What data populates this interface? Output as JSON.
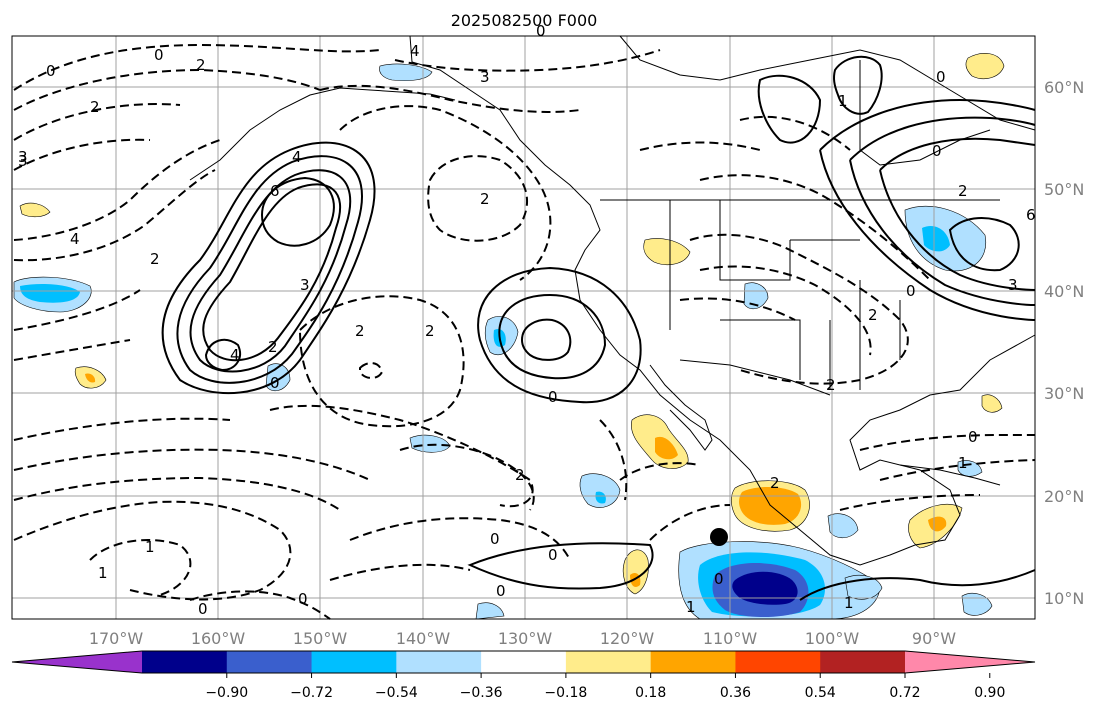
{
  "title": "2025082500 F000",
  "lon_ticks": [
    "170°W",
    "160°W",
    "150°W",
    "140°W",
    "130°W",
    "120°W",
    "110°W",
    "100°W",
    "90°W"
  ],
  "lat_ticks": [
    "60°N",
    "50°N",
    "40°N",
    "30°N",
    "20°N",
    "10°N"
  ],
  "colorbar": {
    "ticks": [
      "−0.90",
      "−0.72",
      "−0.54",
      "−0.36",
      "−0.18",
      "0.18",
      "0.36",
      "0.54",
      "0.72",
      "0.90"
    ],
    "colors": [
      "#9932cc",
      "#00008b",
      "#3a5fcd",
      "#00bfff",
      "#b0e0ff",
      "#ffffff",
      "#ffec8b",
      "#ffa500",
      "#ff4500",
      "#b22222",
      "#ff88aa"
    ]
  },
  "contour_labels": [
    "0",
    "2",
    "4",
    "6",
    "3",
    "4",
    "3",
    "2",
    "0",
    "2",
    "4",
    "2",
    "3",
    "4",
    "2",
    "0",
    "2",
    "2",
    "0",
    "2",
    "2",
    "0",
    "1",
    "0",
    "0",
    "1",
    "2",
    "0",
    "0",
    "3",
    "6",
    "2",
    "0",
    "1",
    "0",
    "1",
    "0",
    "1",
    "0",
    "0",
    "1",
    "3",
    "2",
    "0"
  ],
  "marker": "storm-center"
}
